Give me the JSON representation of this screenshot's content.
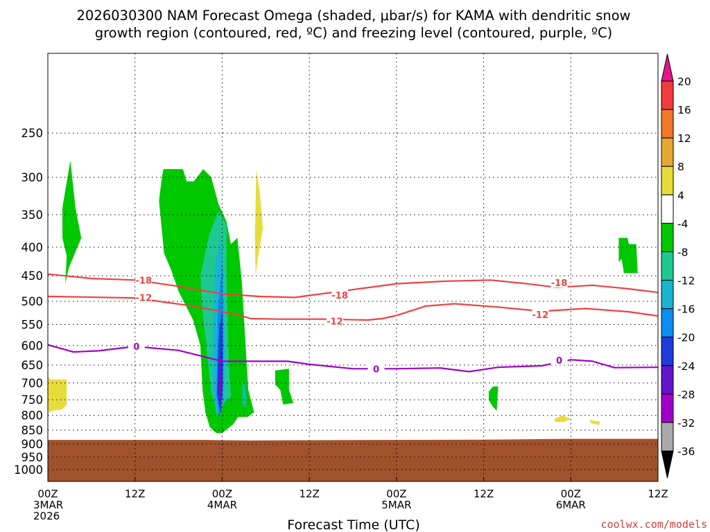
{
  "chart_data": {
    "type": "heatmap",
    "title_lines": [
      "2026030300 NAM Forecast Omega (shaded, μbar/s) for KAMA with dendritic snow",
      "growth region (contoured, red, ºC) and freezing level (contoured, purple, ºC)"
    ],
    "xlabel": "Forecast Time (UTC)",
    "credit": "coolwx.com/models",
    "x_range_hours": [
      0,
      84
    ],
    "x_ticks": [
      {
        "hour": 0,
        "lines": [
          "00Z",
          "3MAR",
          "2026"
        ]
      },
      {
        "hour": 12,
        "lines": [
          "12Z"
        ]
      },
      {
        "hour": 24,
        "lines": [
          "00Z",
          "4MAR"
        ]
      },
      {
        "hour": 36,
        "lines": [
          "12Z"
        ]
      },
      {
        "hour": 48,
        "lines": [
          "00Z",
          "5MAR"
        ]
      },
      {
        "hour": 60,
        "lines": [
          "12Z"
        ]
      },
      {
        "hour": 72,
        "lines": [
          "00Z",
          "6MAR"
        ]
      },
      {
        "hour": 84,
        "lines": [
          "12Z"
        ]
      }
    ],
    "y_axis": {
      "scale": "log-pressure",
      "unit": "hPa",
      "range": [
        1050,
        180
      ],
      "inverted": true
    },
    "y_ticks": [
      250,
      300,
      350,
      400,
      450,
      500,
      550,
      600,
      650,
      700,
      750,
      800,
      850,
      900,
      950,
      1000
    ],
    "grid": true,
    "colorbar": {
      "ticks": [
        20,
        16,
        12,
        8,
        4,
        -4,
        -8,
        -12,
        -16,
        -20,
        -24,
        -28,
        -32,
        -36
      ],
      "bins": [
        {
          "from": 16,
          "to": 20,
          "color": "#f03c3c"
        },
        {
          "from": 12,
          "to": 16,
          "color": "#f07828"
        },
        {
          "from": 8,
          "to": 12,
          "color": "#e6a832"
        },
        {
          "from": 4,
          "to": 8,
          "color": "#e8dc3c"
        },
        {
          "from": -4,
          "to": 4,
          "color": "#ffffff"
        },
        {
          "from": -8,
          "to": -4,
          "color": "#00c800"
        },
        {
          "from": -12,
          "to": -8,
          "color": "#1ec891"
        },
        {
          "from": -16,
          "to": -12,
          "color": "#19b4d2"
        },
        {
          "from": -20,
          "to": -16,
          "color": "#0a8cf0"
        },
        {
          "from": -24,
          "to": -20,
          "color": "#1e3cdc"
        },
        {
          "from": -28,
          "to": -24,
          "color": "#6414c8"
        },
        {
          "from": -32,
          "to": -28,
          "color": "#a000c8"
        },
        {
          "from": -36,
          "to": -32,
          "color": "#aaaaaa"
        }
      ],
      "over_color": "#e6148c",
      "under_color": "#000000"
    },
    "ground": {
      "color": "#a0522d",
      "surface": [
        [
          0,
          885
        ],
        [
          22,
          885
        ],
        [
          24,
          886
        ],
        [
          28,
          887
        ],
        [
          36,
          886
        ],
        [
          48,
          885
        ],
        [
          60,
          884
        ],
        [
          72,
          881
        ],
        [
          84,
          881
        ]
      ]
    },
    "omega_regions": [
      {
        "color": "#00c800",
        "points": [
          [
            3.1,
            280
          ],
          [
            3.8,
            340
          ],
          [
            4.6,
            385
          ],
          [
            2.9,
            435
          ],
          [
            2.4,
            465
          ],
          [
            2.6,
            415
          ],
          [
            2.0,
            385
          ],
          [
            2.0,
            340
          ]
        ]
      },
      {
        "color": "#00c800",
        "points": [
          [
            15.9,
            290
          ],
          [
            18.6,
            290
          ],
          [
            19.1,
            305
          ],
          [
            20.1,
            305
          ],
          [
            21.4,
            290
          ],
          [
            22.5,
            300
          ],
          [
            23.5,
            335
          ],
          [
            24.6,
            360
          ],
          [
            25.2,
            395
          ],
          [
            26.1,
            385
          ],
          [
            26.7,
            460
          ],
          [
            27.6,
            720
          ],
          [
            28.4,
            790
          ],
          [
            27.5,
            805
          ],
          [
            26.2,
            805
          ],
          [
            25.5,
            830
          ],
          [
            24.0,
            860
          ],
          [
            23.2,
            860
          ],
          [
            22.3,
            840
          ],
          [
            21.7,
            790
          ],
          [
            21.3,
            720
          ],
          [
            21.0,
            600
          ],
          [
            20.0,
            540
          ],
          [
            18.0,
            480
          ],
          [
            17.0,
            440
          ],
          [
            16.0,
            410
          ],
          [
            15.3,
            330
          ],
          [
            15.7,
            300
          ]
        ]
      },
      {
        "color": "#1ec891",
        "points": [
          [
            23.5,
            345
          ],
          [
            24.6,
            365
          ],
          [
            24.6,
            450
          ],
          [
            24.9,
            640
          ],
          [
            25.2,
            740
          ],
          [
            23.3,
            780
          ],
          [
            22.5,
            730
          ],
          [
            22.1,
            650
          ],
          [
            21.3,
            520
          ],
          [
            21.0,
            450
          ],
          [
            22.2,
            380
          ]
        ]
      },
      {
        "color": "#19b4d2",
        "points": [
          [
            23.8,
            385
          ],
          [
            24.2,
            450
          ],
          [
            24.4,
            620
          ],
          [
            24.3,
            760
          ],
          [
            23.2,
            800
          ],
          [
            22.7,
            720
          ],
          [
            22.7,
            560
          ],
          [
            23.1,
            420
          ]
        ]
      },
      {
        "color": "#0a8cf0",
        "points": [
          [
            24.0,
            425
          ],
          [
            24.2,
            600
          ],
          [
            24.1,
            740
          ],
          [
            23.7,
            810
          ],
          [
            23.2,
            740
          ],
          [
            23.4,
            520
          ]
        ]
      },
      {
        "color": "#1e3cdc",
        "points": [
          [
            24.0,
            520
          ],
          [
            24.1,
            700
          ],
          [
            23.8,
            790
          ],
          [
            23.3,
            730
          ],
          [
            23.6,
            560
          ]
        ]
      },
      {
        "color": "#6414c8",
        "points": [
          [
            23.9,
            600
          ],
          [
            24.0,
            720
          ],
          [
            23.7,
            790
          ],
          [
            23.4,
            710
          ]
        ]
      },
      {
        "color": "#19b4d2",
        "points": [
          [
            27.0,
            690
          ],
          [
            27.3,
            740
          ],
          [
            27.2,
            775
          ],
          [
            26.8,
            760
          ],
          [
            26.8,
            710
          ]
        ]
      },
      {
        "color": "#00c800",
        "points": [
          [
            31.3,
            665
          ],
          [
            33.2,
            660
          ],
          [
            33.2,
            720
          ],
          [
            33.8,
            760
          ],
          [
            32.4,
            765
          ],
          [
            32.0,
            720
          ],
          [
            31.3,
            705
          ]
        ]
      },
      {
        "color": "#00c800",
        "points": [
          [
            61.3,
            710
          ],
          [
            62.0,
            710
          ],
          [
            61.8,
            785
          ],
          [
            61.2,
            770
          ],
          [
            60.7,
            750
          ],
          [
            60.7,
            725
          ]
        ]
      },
      {
        "color": "#00c800",
        "points": [
          [
            78.6,
            385
          ],
          [
            79.8,
            385
          ],
          [
            80.0,
            395
          ],
          [
            81.0,
            395
          ],
          [
            81.2,
            445
          ],
          [
            79.3,
            445
          ],
          [
            79.0,
            420
          ],
          [
            78.6,
            425
          ]
        ]
      },
      {
        "color": "#e8dc3c",
        "points": [
          [
            28.7,
            290
          ],
          [
            29.2,
            320
          ],
          [
            29.6,
            370
          ],
          [
            28.9,
            420
          ],
          [
            28.6,
            450
          ],
          [
            28.5,
            380
          ]
        ]
      },
      {
        "color": "#e8dc3c",
        "points": [
          [
            0,
            680
          ],
          [
            0.3,
            690
          ],
          [
            2.6,
            690
          ],
          [
            2.6,
            765
          ],
          [
            2.0,
            780
          ],
          [
            0.6,
            785
          ],
          [
            0,
            790
          ]
        ]
      },
      {
        "color": "#e8dc3c",
        "points": [
          [
            69.8,
            810
          ],
          [
            70.9,
            800
          ],
          [
            72.0,
            812
          ],
          [
            71.0,
            822
          ],
          [
            69.8,
            822
          ]
        ]
      },
      {
        "color": "#e8dc3c",
        "points": [
          [
            74.5,
            815
          ],
          [
            76.0,
            820
          ],
          [
            75.9,
            833
          ],
          [
            74.8,
            826
          ]
        ]
      }
    ],
    "contours": [
      {
        "name": "-18",
        "color": "#f04040",
        "points": [
          [
            0,
            447
          ],
          [
            6,
            455
          ],
          [
            12,
            458
          ],
          [
            18,
            470
          ],
          [
            24,
            485
          ],
          [
            29,
            490
          ],
          [
            34,
            492
          ],
          [
            48,
            465
          ],
          [
            55,
            460
          ],
          [
            61,
            458
          ],
          [
            66,
            465
          ],
          [
            70,
            472
          ],
          [
            75,
            468
          ],
          [
            80,
            475
          ],
          [
            84,
            482
          ]
        ],
        "labels": [
          {
            "x": 13.2,
            "p": 458
          },
          {
            "x": 40.2,
            "p": 487
          },
          {
            "x": 70.4,
            "p": 463
          }
        ]
      },
      {
        "name": "-12",
        "color": "#f04040",
        "points": [
          [
            0,
            490
          ],
          [
            12,
            493
          ],
          [
            20,
            510
          ],
          [
            26,
            528
          ],
          [
            28,
            537
          ],
          [
            32,
            538
          ],
          [
            38,
            538
          ],
          [
            44,
            540
          ],
          [
            46,
            537
          ],
          [
            48,
            530
          ],
          [
            52,
            510
          ],
          [
            56,
            505
          ],
          [
            62,
            512
          ],
          [
            68,
            521
          ],
          [
            74,
            515
          ],
          [
            80,
            522
          ],
          [
            84,
            531
          ]
        ],
        "labels": [
          {
            "x": 13.2,
            "p": 492
          },
          {
            "x": 39.5,
            "p": 542
          },
          {
            "x": 67.8,
            "p": 528
          }
        ]
      },
      {
        "name": "0",
        "color": "#a000c8",
        "points": [
          [
            0,
            598
          ],
          [
            3.5,
            616
          ],
          [
            7,
            613
          ],
          [
            12,
            602
          ],
          [
            18,
            612
          ],
          [
            24,
            640
          ],
          [
            33,
            640
          ],
          [
            36,
            648
          ],
          [
            42,
            660
          ],
          [
            48,
            660
          ],
          [
            54,
            658
          ],
          [
            58,
            668
          ],
          [
            62,
            656
          ],
          [
            68,
            652
          ],
          [
            72,
            636
          ],
          [
            75,
            640
          ],
          [
            78,
            657
          ],
          [
            84,
            656
          ]
        ],
        "labels": [
          {
            "x": 12.2,
            "p": 602
          },
          {
            "x": 45.2,
            "p": 660
          },
          {
            "x": 70.4,
            "p": 637
          }
        ]
      }
    ]
  }
}
